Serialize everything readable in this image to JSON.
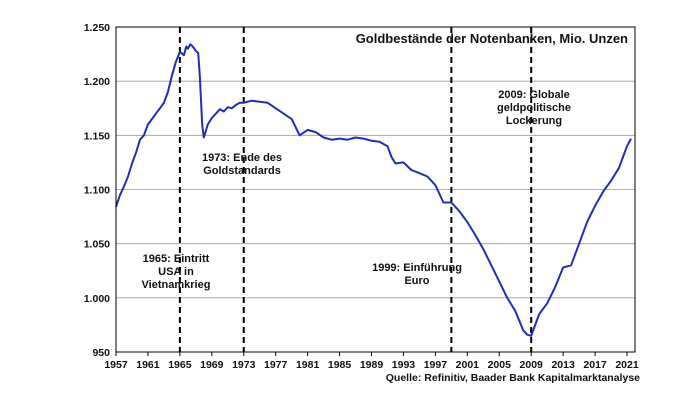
{
  "chart_data": {
    "type": "line",
    "title": "Goldbestände der Notenbanken, Mio. Unzen",
    "source": "Quelle:  Refinitiv, Baader Bank Kapitalmarktanalyse",
    "xlim": [
      1957,
      2022
    ],
    "ylim": [
      950,
      1250
    ],
    "y_ticks": [
      {
        "value": 1250,
        "label": "1.250"
      },
      {
        "value": 1200,
        "label": "1.200"
      },
      {
        "value": 1150,
        "label": "1.150"
      },
      {
        "value": 1100,
        "label": "1.100"
      },
      {
        "value": 1050,
        "label": "1.050"
      },
      {
        "value": 1000,
        "label": "1.000"
      },
      {
        "value": 950,
        "label": "950"
      }
    ],
    "x_ticks": [
      {
        "value": 1957,
        "label": "1957"
      },
      {
        "value": 1961,
        "label": "1961"
      },
      {
        "value": 1965,
        "label": "1965"
      },
      {
        "value": 1969,
        "label": "1969"
      },
      {
        "value": 1973,
        "label": "1973"
      },
      {
        "value": 1977,
        "label": "1977"
      },
      {
        "value": 1981,
        "label": "1981"
      },
      {
        "value": 1985,
        "label": "1985"
      },
      {
        "value": 1989,
        "label": "1989"
      },
      {
        "value": 1993,
        "label": "1993"
      },
      {
        "value": 1997,
        "label": "1997"
      },
      {
        "value": 2001,
        "label": "2001"
      },
      {
        "value": 2005,
        "label": "2005"
      },
      {
        "value": 2009,
        "label": "2009"
      },
      {
        "value": 2013,
        "label": "2013"
      },
      {
        "value": 2017,
        "label": "2017"
      },
      {
        "value": 2021,
        "label": "2021"
      }
    ],
    "grid": true,
    "series": [
      {
        "color": "#1f2fb5",
        "points": [
          [
            1957.0,
            1084
          ],
          [
            1957.5,
            1095
          ],
          [
            1958.0,
            1103
          ],
          [
            1958.5,
            1112
          ],
          [
            1959.0,
            1124
          ],
          [
            1959.5,
            1134
          ],
          [
            1960.0,
            1146
          ],
          [
            1960.5,
            1150
          ],
          [
            1961.0,
            1160
          ],
          [
            1961.5,
            1165
          ],
          [
            1962.0,
            1170
          ],
          [
            1962.5,
            1175
          ],
          [
            1963.0,
            1180
          ],
          [
            1963.5,
            1190
          ],
          [
            1964.0,
            1205
          ],
          [
            1964.5,
            1218
          ],
          [
            1965.0,
            1227
          ],
          [
            1965.5,
            1224
          ],
          [
            1965.8,
            1232
          ],
          [
            1966.0,
            1230
          ],
          [
            1966.3,
            1234
          ],
          [
            1966.6,
            1232
          ],
          [
            1967.0,
            1228
          ],
          [
            1967.3,
            1226
          ],
          [
            1967.5,
            1205
          ],
          [
            1967.8,
            1160
          ],
          [
            1968.0,
            1148
          ],
          [
            1968.5,
            1160
          ],
          [
            1969.0,
            1166
          ],
          [
            1969.5,
            1170
          ],
          [
            1970.0,
            1174
          ],
          [
            1970.5,
            1172
          ],
          [
            1971.0,
            1176
          ],
          [
            1971.5,
            1175
          ],
          [
            1972.0,
            1178
          ],
          [
            1972.5,
            1180
          ],
          [
            1973.0,
            1180
          ],
          [
            1974.0,
            1182
          ],
          [
            1975.0,
            1181
          ],
          [
            1976.0,
            1180
          ],
          [
            1977.0,
            1175
          ],
          [
            1978.0,
            1170
          ],
          [
            1979.0,
            1165
          ],
          [
            1980.0,
            1150
          ],
          [
            1981.0,
            1155
          ],
          [
            1982.0,
            1153
          ],
          [
            1983.0,
            1148
          ],
          [
            1984.0,
            1146
          ],
          [
            1985.0,
            1147
          ],
          [
            1986.0,
            1146
          ],
          [
            1987.0,
            1148
          ],
          [
            1988.0,
            1147
          ],
          [
            1989.0,
            1145
          ],
          [
            1990.0,
            1144
          ],
          [
            1991.0,
            1140
          ],
          [
            1991.5,
            1130
          ],
          [
            1992.0,
            1124
          ],
          [
            1993.0,
            1125
          ],
          [
            1994.0,
            1118
          ],
          [
            1995.0,
            1115
          ],
          [
            1996.0,
            1112
          ],
          [
            1997.0,
            1104
          ],
          [
            1998.0,
            1088
          ],
          [
            1999.0,
            1088
          ],
          [
            2000.0,
            1080
          ],
          [
            2001.0,
            1070
          ],
          [
            2002.0,
            1058
          ],
          [
            2003.0,
            1045
          ],
          [
            2004.0,
            1030
          ],
          [
            2005.0,
            1015
          ],
          [
            2006.0,
            1000
          ],
          [
            2007.0,
            988
          ],
          [
            2008.0,
            970
          ],
          [
            2008.5,
            966
          ],
          [
            2009.0,
            965
          ],
          [
            2009.5,
            975
          ],
          [
            2010.0,
            985
          ],
          [
            2011.0,
            995
          ],
          [
            2012.0,
            1010
          ],
          [
            2013.0,
            1028
          ],
          [
            2014.0,
            1030
          ],
          [
            2015.0,
            1050
          ],
          [
            2016.0,
            1070
          ],
          [
            2017.0,
            1085
          ],
          [
            2018.0,
            1098
          ],
          [
            2019.0,
            1108
          ],
          [
            2020.0,
            1120
          ],
          [
            2021.0,
            1140
          ],
          [
            2021.5,
            1147
          ]
        ]
      }
    ],
    "events": [
      {
        "x": 1965,
        "lines": [
          "1965: Eintritt",
          "USA in",
          "Vietnamkrieg"
        ]
      },
      {
        "x": 1973,
        "lines": [
          "1973: Ende des",
          "Goldstandards"
        ]
      },
      {
        "x": 1999,
        "lines": [
          "1999: Einführung",
          "Euro"
        ]
      },
      {
        "x": 2009,
        "lines": [
          "2009: Globale",
          "geldpolitische",
          "Lockerung"
        ]
      }
    ]
  }
}
